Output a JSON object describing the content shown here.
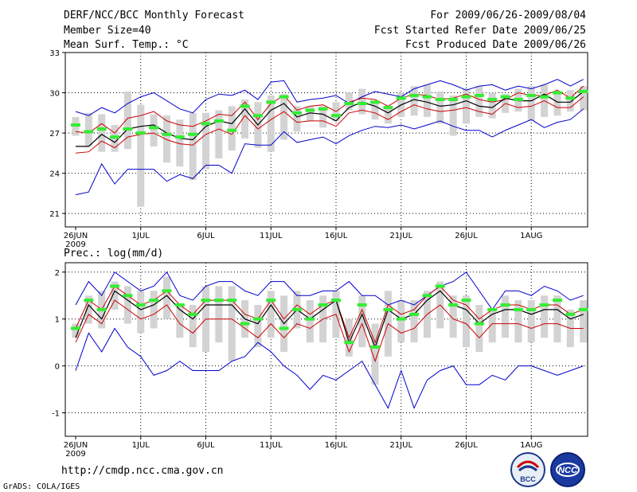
{
  "header": {
    "title": "DERF/NCC/BCC Monthly Forecast",
    "member_size": "Member Size=40",
    "variable": "Mean Surf. Temp.: °C",
    "period": "For 2009/06/26-2009/08/04",
    "start_date": "Fcst Started Refer Date 2009/06/25",
    "produced_date": "Fcst Produced Date 2009/06/26"
  },
  "precip_label": "Prec.: log(mm/d)",
  "footer": {
    "url": "http://cmdp.ncc.cma.gov.cn",
    "grads": "GrADS: COLA/IGES",
    "logo_bcc": "BCC",
    "logo_ncc": "NCC"
  },
  "colors": {
    "box": "#d3d3d3",
    "max_line": "#0000cc",
    "ensemble": "#cc0000",
    "mean": "#000000",
    "marker": "#33ee33"
  },
  "x_axis": {
    "tick_labels": [
      "26JUN",
      "1JUL",
      "6JUL",
      "11JUL",
      "16JUL",
      "21JUL",
      "26JUL",
      "1AUG"
    ],
    "year_label": "2009",
    "days": 40
  },
  "chart_data": [
    {
      "type": "line",
      "title": "Mean Surf. Temp.: °C",
      "ylim": [
        20,
        33
      ],
      "yticks": [
        21,
        24,
        27,
        30,
        33
      ],
      "x": [
        0,
        1,
        2,
        3,
        4,
        5,
        6,
        7,
        8,
        9,
        10,
        11,
        12,
        13,
        14,
        15,
        16,
        17,
        18,
        19,
        20,
        21,
        22,
        23,
        24,
        25,
        26,
        27,
        28,
        29,
        30,
        31,
        32,
        33,
        34,
        35,
        36,
        37,
        38,
        39
      ],
      "series": [
        {
          "name": "max",
          "values": [
            28.6,
            28.3,
            28.9,
            28.5,
            29.2,
            29.7,
            30.0,
            29.4,
            28.8,
            28.5,
            29.5,
            29.9,
            29.8,
            30.2,
            29.5,
            30.8,
            30.9,
            29.3,
            29.5,
            29.6,
            29.8,
            29.2,
            29.7,
            30.1,
            29.9,
            29.7,
            30.3,
            30.6,
            30.9,
            30.6,
            30.2,
            30.5,
            30.6,
            30.2,
            30.5,
            30.3,
            30.6,
            31.0,
            30.5,
            31.0
          ]
        },
        {
          "name": "ens_upper",
          "values": [
            27.1,
            27.0,
            27.7,
            27.0,
            28.1,
            28.3,
            28.6,
            27.9,
            27.6,
            27.5,
            27.9,
            28.4,
            28.3,
            29.3,
            28.0,
            29.2,
            29.8,
            28.7,
            29.0,
            29.1,
            28.6,
            29.3,
            29.6,
            29.5,
            29.0,
            29.6,
            29.9,
            29.8,
            29.5,
            29.6,
            29.9,
            29.5,
            29.3,
            29.5,
            30.0,
            29.8,
            29.8,
            30.2,
            29.6,
            30.5
          ]
        },
        {
          "name": "mean",
          "values": [
            26.0,
            26.0,
            26.9,
            26.3,
            27.3,
            27.5,
            27.6,
            27.0,
            26.6,
            26.5,
            27.5,
            27.9,
            27.7,
            28.8,
            27.6,
            28.7,
            29.2,
            28.2,
            28.5,
            28.4,
            27.9,
            28.9,
            29.3,
            29.0,
            28.5,
            29.1,
            29.5,
            29.3,
            29.0,
            29.1,
            29.4,
            29.0,
            28.9,
            29.6,
            29.4,
            29.4,
            29.9,
            29.3,
            29.3,
            30.1
          ]
        },
        {
          "name": "ens_lower",
          "values": [
            25.5,
            25.6,
            26.4,
            25.9,
            26.7,
            26.9,
            27.0,
            26.5,
            26.2,
            26.1,
            26.9,
            27.3,
            26.9,
            28.3,
            27.3,
            28.0,
            28.6,
            27.8,
            27.9,
            27.9,
            27.5,
            28.5,
            28.7,
            28.5,
            28.0,
            28.6,
            29.1,
            28.8,
            28.6,
            28.7,
            28.9,
            28.6,
            28.4,
            29.2,
            28.9,
            29.0,
            29.4,
            28.9,
            28.9,
            29.7
          ]
        },
        {
          "name": "min",
          "values": [
            22.4,
            22.6,
            24.7,
            23.2,
            24.3,
            24.3,
            24.3,
            23.4,
            23.9,
            23.6,
            24.6,
            24.6,
            24.0,
            26.2,
            26.1,
            26.1,
            27.1,
            26.3,
            26.5,
            26.7,
            26.2,
            26.8,
            27.2,
            27.5,
            27.4,
            27.6,
            27.3,
            27.6,
            27.9,
            27.5,
            27.2,
            27.2,
            26.7,
            27.2,
            27.6,
            28.0,
            27.4,
            27.8,
            28.0,
            28.8
          ]
        },
        {
          "name": "marker",
          "values": [
            27.6,
            27.1,
            27.3,
            26.7,
            27.3,
            27.0,
            27.4,
            26.9,
            26.7,
            26.9,
            27.7,
            27.9,
            27.2,
            29.0,
            28.3,
            29.3,
            29.7,
            28.5,
            28.7,
            28.8,
            28.3,
            29.2,
            29.2,
            29.3,
            28.9,
            29.6,
            29.8,
            29.7,
            29.5,
            29.5,
            29.7,
            29.8,
            29.5,
            29.7,
            29.5,
            29.8,
            29.7,
            30.0,
            29.6,
            30.1
          ]
        },
        {
          "name": "box_high",
          "values": [
            28.2,
            28.5,
            28.4,
            27.6,
            30.1,
            29.1,
            28.4,
            28.3,
            28.0,
            28.5,
            28.5,
            28.7,
            29.0,
            29.5,
            29.3,
            29.8,
            29.9,
            29.0,
            29.0,
            29.0,
            29.3,
            30.0,
            30.3,
            29.4,
            29.0,
            30.0,
            30.5,
            30.6,
            30.1,
            29.8,
            30.3,
            30.5,
            30.0,
            29.9,
            30.3,
            30.5,
            30.6,
            30.0,
            30.2,
            30.5
          ]
        },
        {
          "name": "box_low",
          "values": [
            26.8,
            26.0,
            25.6,
            25.6,
            25.8,
            21.5,
            26.0,
            24.8,
            24.5,
            23.5,
            24.3,
            25.1,
            25.7,
            26.6,
            25.9,
            25.6,
            26.5,
            27.1,
            27.9,
            27.4,
            27.9,
            28.7,
            28.4,
            28.0,
            27.7,
            28.2,
            28.3,
            28.2,
            27.7,
            26.8,
            27.7,
            28.2,
            28.1,
            28.5,
            28.6,
            27.9,
            28.2,
            28.3,
            28.6,
            28.7
          ]
        }
      ]
    },
    {
      "type": "line",
      "title": "Prec.: log(mm/d)",
      "ylim": [
        -1.5,
        2.2
      ],
      "yticks": [
        -1,
        0,
        1,
        2
      ],
      "x": [
        0,
        1,
        2,
        3,
        4,
        5,
        6,
        7,
        8,
        9,
        10,
        11,
        12,
        13,
        14,
        15,
        16,
        17,
        18,
        19,
        20,
        21,
        22,
        23,
        24,
        25,
        26,
        27,
        28,
        29,
        30,
        31,
        32,
        33,
        34,
        35,
        36,
        37,
        38,
        39
      ],
      "series": [
        {
          "name": "max",
          "values": [
            1.3,
            1.8,
            1.5,
            2.0,
            1.8,
            1.6,
            1.7,
            2.0,
            1.5,
            1.4,
            1.7,
            1.8,
            1.8,
            1.6,
            1.5,
            1.8,
            1.8,
            1.5,
            1.5,
            1.6,
            1.6,
            1.8,
            1.5,
            1.5,
            1.3,
            1.4,
            1.3,
            1.5,
            1.7,
            1.8,
            2.0,
            1.6,
            1.2,
            1.6,
            1.6,
            1.5,
            1.7,
            1.6,
            1.4,
            1.5
          ]
        },
        {
          "name": "ens_upper",
          "values": [
            0.8,
            1.4,
            1.2,
            1.7,
            1.5,
            1.3,
            1.4,
            1.6,
            1.3,
            1.1,
            1.4,
            1.4,
            1.4,
            1.1,
            1.0,
            1.4,
            1.0,
            1.3,
            1.1,
            1.3,
            1.4,
            0.6,
            1.2,
            0.5,
            1.3,
            1.1,
            1.2,
            1.5,
            1.7,
            1.4,
            1.3,
            1.0,
            1.2,
            1.3,
            1.3,
            1.2,
            1.3,
            1.3,
            1.1,
            1.2
          ]
        },
        {
          "name": "mean",
          "values": [
            0.6,
            1.3,
            1.0,
            1.6,
            1.4,
            1.2,
            1.3,
            1.5,
            1.2,
            1.0,
            1.3,
            1.3,
            1.3,
            1.0,
            0.9,
            1.3,
            0.9,
            1.2,
            1.0,
            1.2,
            1.4,
            0.5,
            1.1,
            0.4,
            1.2,
            1.0,
            1.1,
            1.4,
            1.6,
            1.3,
            1.2,
            0.9,
            1.1,
            1.2,
            1.2,
            1.1,
            1.2,
            1.2,
            1.0,
            1.1
          ]
        },
        {
          "name": "ens_lower",
          "values": [
            0.5,
            1.1,
            0.9,
            1.4,
            1.2,
            1.0,
            1.1,
            1.3,
            0.9,
            0.7,
            1.0,
            1.0,
            1.0,
            0.8,
            0.6,
            0.9,
            0.6,
            0.9,
            0.8,
            1.0,
            1.1,
            0.3,
            0.9,
            0.1,
            0.9,
            0.7,
            0.8,
            1.1,
            1.3,
            1.0,
            0.9,
            0.6,
            0.9,
            0.9,
            0.9,
            0.8,
            0.9,
            0.9,
            0.8,
            0.8
          ]
        },
        {
          "name": "min",
          "values": [
            -0.1,
            0.7,
            0.3,
            0.8,
            0.4,
            0.2,
            -0.2,
            -0.1,
            0.1,
            -0.1,
            -0.1,
            -0.1,
            0.1,
            0.2,
            0.5,
            0.3,
            0.0,
            -0.2,
            -0.5,
            -0.2,
            -0.3,
            -0.1,
            0.1,
            -0.4,
            -0.9,
            -0.1,
            -0.9,
            -0.3,
            -0.1,
            0.0,
            -0.4,
            -0.4,
            -0.2,
            -0.3,
            0.0,
            0.0,
            -0.1,
            -0.2,
            -0.1,
            0.0
          ]
        },
        {
          "name": "marker",
          "values": [
            0.8,
            1.4,
            1.2,
            1.7,
            1.5,
            1.3,
            1.4,
            1.6,
            1.3,
            1.1,
            1.4,
            1.4,
            1.4,
            0.9,
            1.0,
            1.4,
            0.8,
            1.2,
            1.0,
            1.3,
            1.4,
            0.5,
            1.3,
            0.4,
            1.2,
            1.0,
            1.1,
            1.5,
            1.7,
            1.3,
            1.4,
            0.9,
            1.2,
            1.3,
            1.2,
            1.2,
            1.3,
            1.4,
            1.1,
            1.2
          ]
        },
        {
          "name": "box_high",
          "values": [
            0.9,
            1.5,
            1.6,
            1.8,
            1.7,
            1.6,
            1.6,
            1.9,
            1.3,
            1.3,
            1.7,
            1.7,
            1.7,
            1.4,
            1.3,
            1.6,
            1.5,
            1.6,
            1.4,
            1.5,
            1.6,
            1.0,
            1.5,
            0.9,
            1.6,
            1.4,
            1.4,
            1.6,
            1.8,
            1.5,
            1.5,
            1.3,
            1.2,
            1.5,
            1.4,
            1.4,
            1.5,
            1.5,
            1.2,
            1.4
          ]
        },
        {
          "name": "box_low",
          "values": [
            0.6,
            0.9,
            0.8,
            1.2,
            0.9,
            0.7,
            0.8,
            1.0,
            0.6,
            0.4,
            0.3,
            0.5,
            0.1,
            0.6,
            0.4,
            0.6,
            0.3,
            0.8,
            0.5,
            0.5,
            0.6,
            0.2,
            0.4,
            -0.4,
            0.2,
            0.5,
            0.5,
            0.6,
            0.8,
            0.6,
            0.4,
            0.3,
            0.5,
            0.6,
            0.5,
            0.5,
            0.6,
            0.5,
            0.4,
            0.5
          ]
        }
      ]
    }
  ]
}
